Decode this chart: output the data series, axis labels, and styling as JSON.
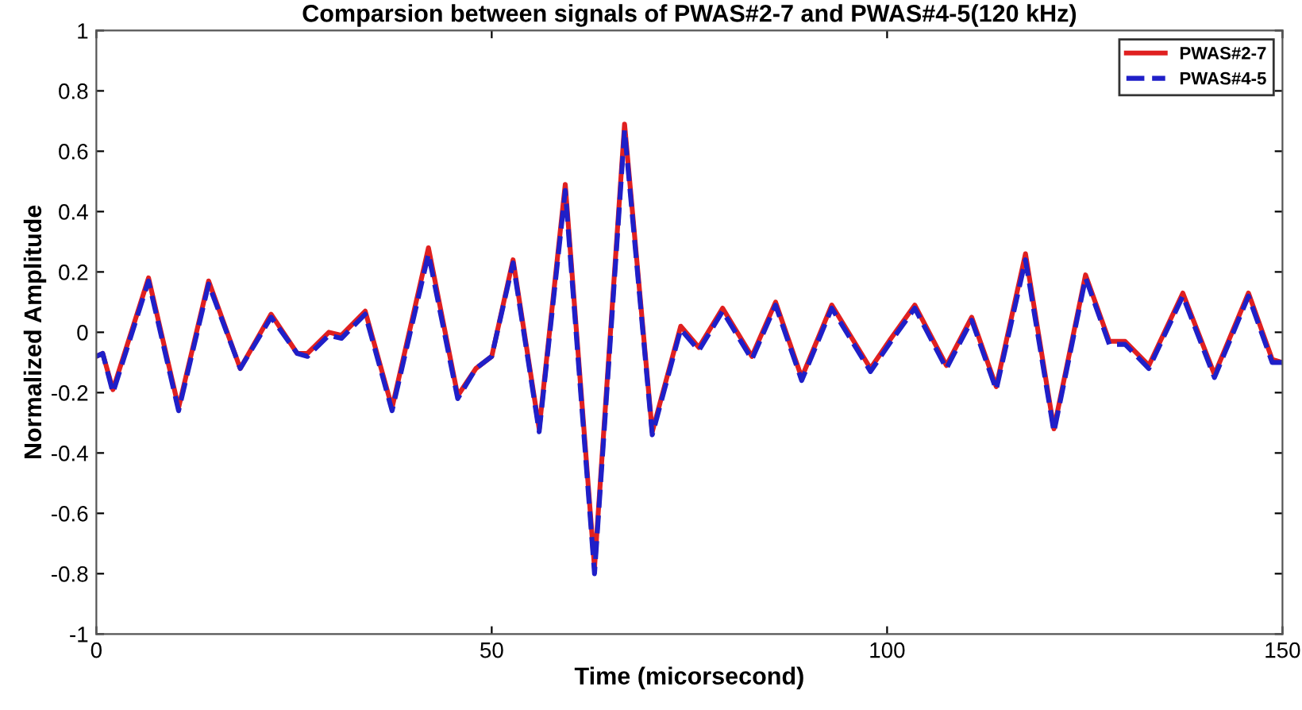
{
  "chart_data": {
    "type": "line",
    "title": "Comparsion between signals of PWAS#2-7 and PWAS#4-5(120 kHz)",
    "xlabel": "Time (micorsecond)",
    "ylabel": "Normalized Amplitude",
    "xlim": [
      0,
      150
    ],
    "xticks": [
      0,
      50,
      100,
      150
    ],
    "ylim": [
      -1,
      1
    ],
    "yticks": [
      -1,
      -0.8,
      -0.6,
      -0.4,
      -0.2,
      0,
      0.2,
      0.4,
      0.6,
      0.8,
      1
    ],
    "grid": false,
    "legend": "top right",
    "x": [
      0,
      0.8,
      2.1,
      6.6,
      10.4,
      14.2,
      18.2,
      22.1,
      25.4,
      26.7,
      29.4,
      31.0,
      34.0,
      37.4,
      42.0,
      45.7,
      48.0,
      50.0,
      52.7,
      56.0,
      59.3,
      63.0,
      66.8,
      70.3,
      73.9,
      76.2,
      79.2,
      82.9,
      85.9,
      89.2,
      93.0,
      97.9,
      100.5,
      103.5,
      107.5,
      110.7,
      113.8,
      117.5,
      121.1,
      125.1,
      128.1,
      130.1,
      133.1,
      137.4,
      141.4,
      145.7,
      148.7,
      150
    ],
    "series": [
      {
        "name": "PWAS#2-7",
        "color": "#e02020",
        "line_style": "solid",
        "values": [
          -0.08,
          -0.07,
          -0.19,
          0.18,
          -0.25,
          0.17,
          -0.12,
          0.06,
          -0.07,
          -0.07,
          0.0,
          -0.01,
          0.07,
          -0.25,
          0.28,
          -0.21,
          -0.12,
          -0.08,
          0.24,
          -0.32,
          0.49,
          -0.78,
          0.69,
          -0.33,
          0.02,
          -0.05,
          0.08,
          -0.08,
          0.1,
          -0.15,
          0.09,
          -0.12,
          -0.02,
          0.09,
          -0.11,
          0.05,
          -0.18,
          0.26,
          -0.32,
          0.19,
          -0.03,
          -0.03,
          -0.11,
          0.13,
          -0.14,
          0.13,
          -0.09,
          -0.1
        ]
      },
      {
        "name": "PWAS#4-5",
        "color": "#1f1fc8",
        "line_style": "dashed",
        "values": [
          -0.08,
          -0.07,
          -0.2,
          0.17,
          -0.26,
          0.16,
          -0.12,
          0.05,
          -0.07,
          -0.08,
          -0.01,
          -0.02,
          0.06,
          -0.26,
          0.26,
          -0.22,
          -0.12,
          -0.08,
          0.23,
          -0.33,
          0.47,
          -0.8,
          0.67,
          -0.34,
          0.01,
          -0.06,
          0.07,
          -0.09,
          0.09,
          -0.16,
          0.08,
          -0.13,
          -0.03,
          0.08,
          -0.12,
          0.04,
          -0.19,
          0.24,
          -0.33,
          0.18,
          -0.04,
          -0.04,
          -0.12,
          0.12,
          -0.15,
          0.12,
          -0.1,
          -0.1
        ]
      }
    ]
  }
}
